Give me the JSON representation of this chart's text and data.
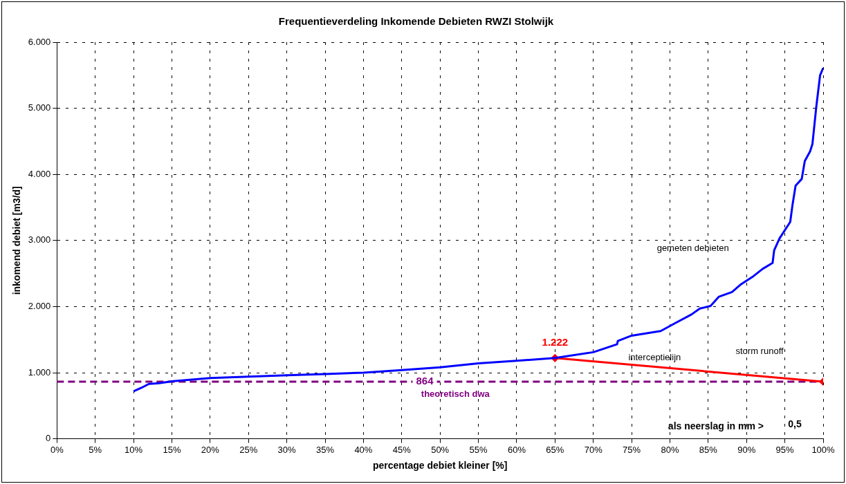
{
  "chart_data": {
    "type": "line",
    "title": "Frequentieverdeling Inkomende Debieten RWZI Stolwijk",
    "xlabel": "percentage debiet kleiner [%]",
    "ylabel": "inkomend debiet [m3/d]",
    "xlim": [
      0,
      100
    ],
    "xticks": [
      {
        "value": 0,
        "label": "0%"
      },
      {
        "value": 5,
        "label": "5%"
      },
      {
        "value": 10,
        "label": "10%"
      },
      {
        "value": 15,
        "label": "15%"
      },
      {
        "value": 20,
        "label": "20%"
      },
      {
        "value": 25,
        "label": "25%"
      },
      {
        "value": 30,
        "label": "30%"
      },
      {
        "value": 35,
        "label": "35%"
      },
      {
        "value": 40,
        "label": "40%"
      },
      {
        "value": 45,
        "label": "45%"
      },
      {
        "value": 50,
        "label": "50%"
      },
      {
        "value": 55,
        "label": "55%"
      },
      {
        "value": 60,
        "label": "60%"
      },
      {
        "value": 65,
        "label": "65%"
      },
      {
        "value": 70,
        "label": "70%"
      },
      {
        "value": 75,
        "label": "75%"
      },
      {
        "value": 80,
        "label": "80%"
      },
      {
        "value": 85,
        "label": "85%"
      },
      {
        "value": 90,
        "label": "90%"
      },
      {
        "value": 95,
        "label": "95%"
      },
      {
        "value": 100,
        "label": "100%"
      }
    ],
    "ylim": [
      0,
      6000
    ],
    "yticks": [
      0,
      {
        "value": 1000,
        "label": "1.000"
      },
      {
        "value": 2000,
        "label": "2.000"
      },
      {
        "value": 3000,
        "label": "3.000"
      },
      {
        "value": 4000,
        "label": "4.000"
      },
      {
        "value": 5000,
        "label": "5.000"
      },
      {
        "value": 6000,
        "label": "6.000"
      }
    ],
    "grid": true,
    "legend": false,
    "marker": "none",
    "line_style": "solid",
    "series": [
      {
        "color": "#0000ff",
        "x": [
          10,
          11,
          12,
          13.3,
          15,
          20,
          25,
          30,
          35,
          40,
          45,
          50,
          55,
          60,
          65,
          70,
          73.1,
          73.2,
          75,
          78.8,
          80.7,
          82.8,
          83.9,
          85.3,
          86.4,
          88.1,
          89.3,
          90.9,
          92.1,
          93.4,
          93.6,
          94.3,
          95.7,
          96.0,
          96.4,
          97.2,
          97.6,
          98.3,
          98.6,
          99.1,
          99.6,
          100
        ],
        "values": [
          720,
          770,
          830,
          840,
          870,
          920,
          940,
          960,
          980,
          1000,
          1040,
          1080,
          1140,
          1180,
          1222,
          1310,
          1430,
          1480,
          1560,
          1630,
          1750,
          1880,
          1970,
          2010,
          2150,
          2220,
          2340,
          2460,
          2570,
          2660,
          2850,
          3030,
          3280,
          3540,
          3830,
          3930,
          4200,
          4350,
          4460,
          5020,
          5500,
          5610
        ]
      },
      {
        "color": "#ff0000",
        "marker": "diamond",
        "x": [
          65,
          100
        ],
        "values": [
          1222,
          864
        ]
      }
    ],
    "ref_lines": [
      {
        "axis": "y",
        "value": 864,
        "label": "864",
        "color": "#800080",
        "line_style": "dashed"
      }
    ],
    "annotations": [
      {
        "text": "1.222",
        "x": 65,
        "y": 1222
      },
      {
        "text": "theoretisch dwa",
        "x": 52,
        "y": 864
      },
      "gemeten debieten",
      "interceptielijn",
      "storm runoff",
      "als neerslag in mm >",
      "0,5"
    ]
  }
}
